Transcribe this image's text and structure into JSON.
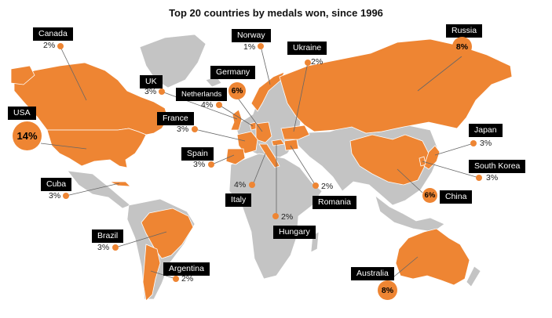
{
  "title": "Top 20 countries by medals won, since 1996",
  "colors": {
    "highlight": "#ee8533",
    "land": "#c4c4c4",
    "label_bg": "#000000",
    "leader": "#666666"
  },
  "countries": [
    {
      "name": "Canada",
      "share": "2%"
    },
    {
      "name": "Norway",
      "share": "1%"
    },
    {
      "name": "Ukraine",
      "share": "2%"
    },
    {
      "name": "Russia",
      "share": "8%"
    },
    {
      "name": "USA",
      "share": "14%"
    },
    {
      "name": "UK",
      "share": "3%"
    },
    {
      "name": "Netherlands",
      "share": "4%"
    },
    {
      "name": "Germany",
      "share": "6%"
    },
    {
      "name": "France",
      "share": "3%"
    },
    {
      "name": "Spain",
      "share": "3%"
    },
    {
      "name": "Italy",
      "share": "4%"
    },
    {
      "name": "Romania",
      "share": "2%"
    },
    {
      "name": "Hungary",
      "share": "2%"
    },
    {
      "name": "Cuba",
      "share": "3%"
    },
    {
      "name": "Brazil",
      "share": "3%"
    },
    {
      "name": "Argentina",
      "share": "2%"
    },
    {
      "name": "Japan",
      "share": "3%"
    },
    {
      "name": "South Korea",
      "share": "3%"
    },
    {
      "name": "China",
      "share": "6%"
    },
    {
      "name": "Australia",
      "share": "8%"
    }
  ]
}
